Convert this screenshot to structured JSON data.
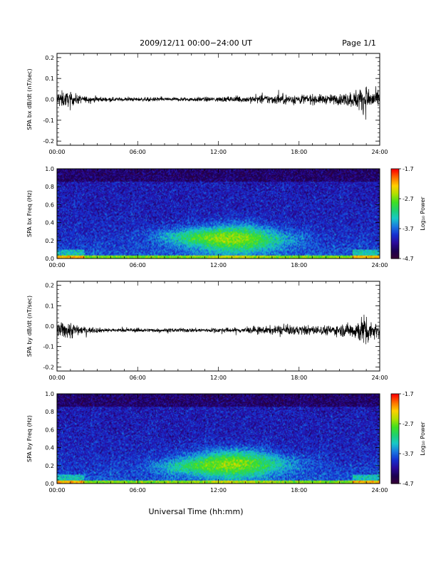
{
  "header": {
    "date_range": "2009/12/11   00:00−24:00 UT",
    "page": "Page 1/1"
  },
  "xlabel": "Universal Time (hh:mm)",
  "colorbar": {
    "label": "Log₁₀ Power",
    "ticks": [
      "-1.7",
      "-2.7",
      "-3.7",
      "-4.7"
    ],
    "colors": [
      "#3a0033",
      "#1a0050",
      "#2a0a9a",
      "#1530d0",
      "#1a78e0",
      "#18c8c8",
      "#20d070",
      "#40e020",
      "#b0e000",
      "#ffd000",
      "#ff7000",
      "#ff0000"
    ]
  },
  "chart_data": [
    {
      "type": "line",
      "ylabel": "SPA bx dB/dt (nT/sec)",
      "x_ticks": [
        "00:00",
        "06:00",
        "12:00",
        "18:00",
        "24:00"
      ],
      "xlim": [
        0,
        24
      ],
      "ylim": [
        -0.22,
        0.22
      ],
      "y_ticks": [
        "0.2",
        "0.1",
        "0.0",
        "-0.1",
        "-0.2"
      ],
      "baseline": 0.0,
      "envelope": {
        "x": [
          0,
          1,
          2,
          4,
          8,
          12,
          14,
          16,
          18,
          20,
          21,
          22,
          22.5,
          23,
          23.5,
          24
        ],
        "amplitude": [
          0.055,
          0.04,
          0.02,
          0.012,
          0.012,
          0.015,
          0.02,
          0.03,
          0.032,
          0.028,
          0.032,
          0.05,
          0.07,
          0.09,
          0.06,
          0.045
        ]
      }
    },
    {
      "type": "heatmap",
      "ylabel": "SPA bx Freq (Hz)",
      "x_ticks": [
        "00:00",
        "06:00",
        "12:00",
        "18:00",
        "24:00"
      ],
      "xlim": [
        0,
        24
      ],
      "ylim": [
        0,
        1.0
      ],
      "y_ticks": [
        "1.0",
        "0.8",
        "0.6",
        "0.4",
        "0.2",
        "0.0"
      ],
      "zlim": [
        -4.7,
        -1.7
      ]
    },
    {
      "type": "line",
      "ylabel": "SPA by dB/dt (nT/sec)",
      "x_ticks": [
        "00:00",
        "06:00",
        "12:00",
        "18:00",
        "24:00"
      ],
      "xlim": [
        0,
        24
      ],
      "ylim": [
        -0.22,
        0.22
      ],
      "y_ticks": [
        "0.2",
        "0.1",
        "0.0",
        "-0.1",
        "-0.2"
      ],
      "baseline": -0.02,
      "envelope": {
        "x": [
          0,
          1,
          1.5,
          2,
          4,
          8,
          12,
          14,
          16,
          18,
          20,
          21,
          22,
          22.5,
          23,
          23.5,
          24
        ],
        "amplitude": [
          0.04,
          0.06,
          0.035,
          0.02,
          0.012,
          0.012,
          0.014,
          0.018,
          0.026,
          0.03,
          0.03,
          0.035,
          0.05,
          0.08,
          0.1,
          0.05,
          0.045
        ]
      }
    },
    {
      "type": "heatmap",
      "ylabel": "SPA by Freq (Hz)",
      "x_ticks": [
        "00:00",
        "06:00",
        "12:00",
        "18:00",
        "24:00"
      ],
      "xlim": [
        0,
        24
      ],
      "ylim": [
        0,
        1.0
      ],
      "y_ticks": [
        "1.0",
        "0.8",
        "0.6",
        "0.4",
        "0.2",
        "0.0"
      ],
      "zlim": [
        -4.7,
        -1.7
      ]
    }
  ]
}
